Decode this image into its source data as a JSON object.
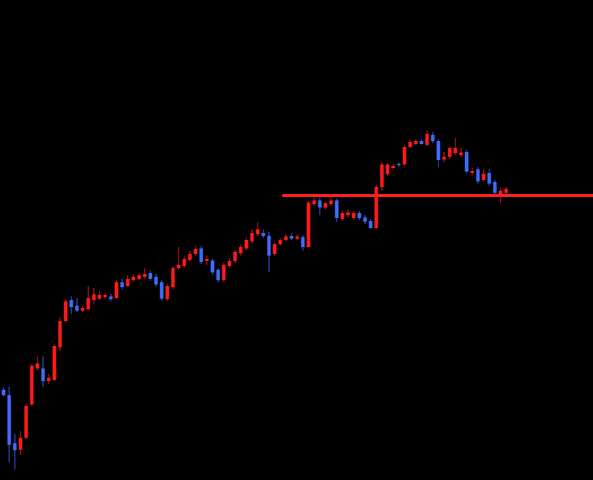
{
  "chart_data": {
    "type": "candlestick",
    "up_color": "#ff1a1a",
    "down_color": "#3d6bff",
    "wick_up_color": "#ff1a1a",
    "wick_down_color": "#3d6bff",
    "ylim": [
      0,
      680
    ],
    "open": [
      128,
      120,
      52,
      43,
      60,
      107,
      158,
      158,
      140,
      142,
      188,
      225,
      255,
      247,
      240,
      242,
      255,
      257,
      259,
      260,
      258,
      280,
      275,
      283,
      285,
      288,
      293,
      288,
      280,
      256,
      273,
      300,
      303,
      312,
      320,
      328,
      310,
      311,
      298,
      283,
      303,
      310,
      321,
      328,
      338,
      348,
      350,
      346,
      320,
      334,
      340,
      346,
      342,
      344,
      330,
      391,
      396,
      386,
      391,
      396,
      370,
      375,
      371,
      378,
      372,
      367,
      357,
      415,
      433,
      442,
      448,
      447,
      472,
      476,
      480,
      475,
      489,
      480,
      454,
      458,
      463,
      460,
      465,
      435,
      440,
      425,
      435,
      422,
      405,
      407
    ],
    "high": [
      132,
      132,
      65,
      70,
      108,
      164,
      175,
      175,
      150,
      192,
      230,
      256,
      260,
      258,
      248,
      275,
      272,
      268,
      265,
      264,
      283,
      285,
      290,
      292,
      293,
      300,
      297,
      292,
      283,
      278,
      303,
      330,
      318,
      325,
      332,
      332,
      318,
      314,
      300,
      308,
      314,
      326,
      334,
      343,
      355,
      365,
      355,
      352,
      337,
      343,
      348,
      350,
      348,
      347,
      395,
      400,
      400,
      395,
      399,
      399,
      382,
      383,
      381,
      381,
      375,
      370,
      418,
      450,
      450,
      448,
      450,
      475,
      482,
      483,
      483,
      495,
      493,
      483,
      465,
      473,
      485,
      470,
      468,
      442,
      443,
      440,
      440,
      425,
      414,
      415
    ],
    "low": [
      118,
      25,
      15,
      35,
      58,
      105,
      155,
      132,
      136,
      140,
      183,
      222,
      235,
      238,
      238,
      240,
      250,
      255,
      256,
      253,
      256,
      270,
      273,
      280,
      283,
      285,
      282,
      274,
      254,
      254,
      271,
      298,
      300,
      310,
      318,
      306,
      305,
      290,
      280,
      281,
      300,
      307,
      318,
      325,
      335,
      345,
      343,
      295,
      317,
      332,
      338,
      340,
      340,
      325,
      328,
      388,
      375,
      383,
      388,
      366,
      367,
      372,
      368,
      368,
      363,
      355,
      355,
      410,
      430,
      440,
      443,
      445,
      470,
      474,
      474,
      473,
      477,
      443,
      450,
      455,
      460,
      457,
      434,
      432,
      420,
      422,
      417,
      403,
      392,
      404
    ],
    "close": [
      120,
      50,
      42,
      60,
      105,
      162,
      165,
      140,
      145,
      190,
      225,
      253,
      245,
      240,
      244,
      258,
      263,
      262,
      262,
      256,
      280,
      273,
      285,
      288,
      290,
      292,
      285,
      277,
      257,
      275,
      300,
      305,
      313,
      320,
      327,
      309,
      313,
      294,
      283,
      305,
      310,
      323,
      330,
      340,
      350,
      355,
      346,
      318,
      334,
      340,
      345,
      342,
      345,
      330,
      393,
      396,
      386,
      392,
      396,
      371,
      378,
      379,
      378,
      371,
      366,
      357,
      415,
      447,
      447,
      445,
      446,
      472,
      479,
      480,
      476,
      490,
      480,
      453,
      458,
      470,
      470,
      464,
      437,
      438,
      423,
      434,
      420,
      407,
      410,
      412
    ],
    "level": 403,
    "level_color": "#ff2020"
  }
}
